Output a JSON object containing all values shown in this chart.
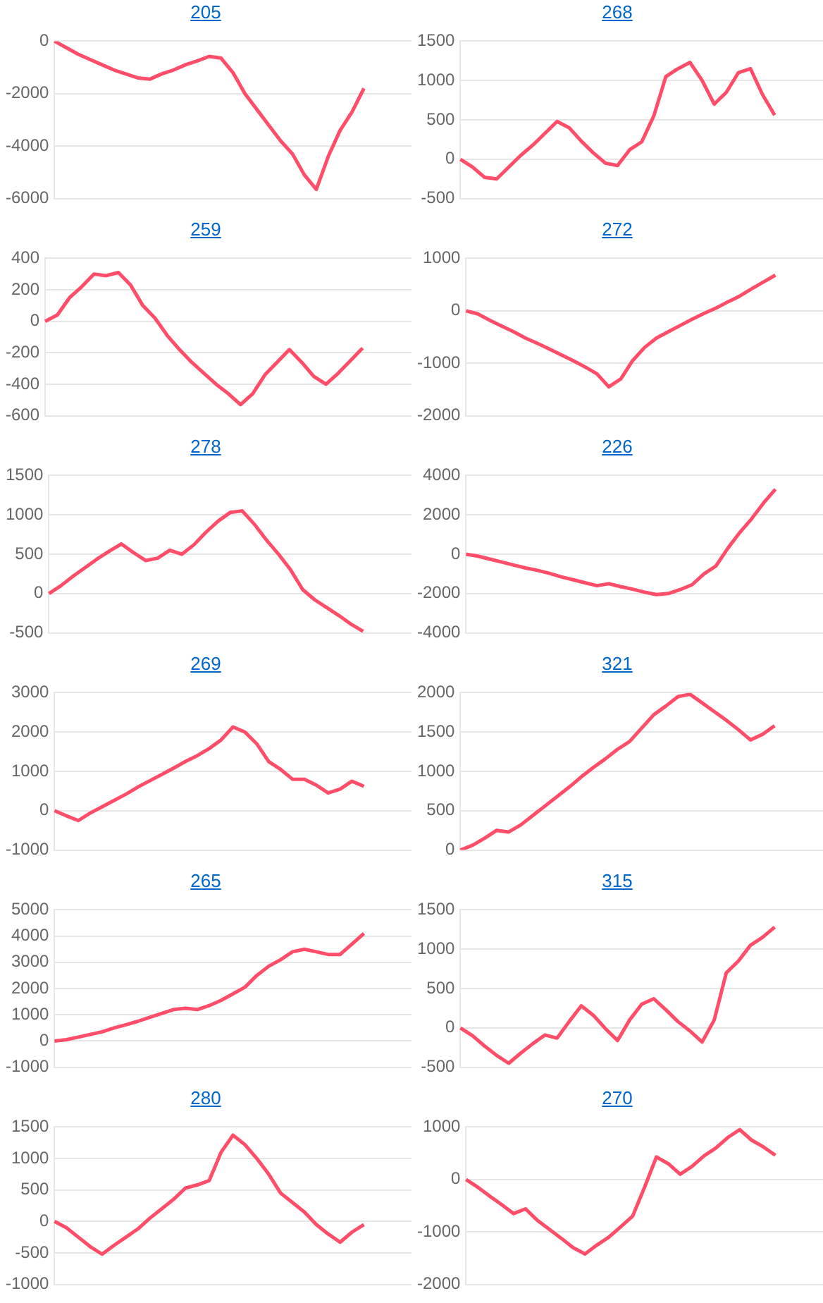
{
  "chart_data": [
    {
      "type": "line",
      "title": "205",
      "categories": [
        null,
        null,
        null,
        null,
        null,
        null,
        null,
        null,
        null,
        null,
        null,
        null,
        null,
        null,
        null,
        null,
        null,
        null,
        null,
        null,
        null,
        null,
        null,
        null,
        null,
        null,
        null,
        null,
        null,
        null,
        null
      ],
      "series": [
        {
          "color": "#ff4d6a",
          "values": [
            0,
            -250,
            -500,
            -700,
            -900,
            -1100,
            -1250,
            -1400,
            -1450,
            -1250,
            -1100,
            -900,
            -750,
            -580,
            -650,
            -1200,
            -2000,
            -2600,
            -3200,
            -3800,
            -4300,
            -5100,
            -5650,
            -4400,
            -3400,
            -2700,
            -1800,
            null,
            null,
            null,
            null
          ]
        }
      ],
      "ylim": [
        -6000,
        0
      ],
      "yticks": [
        -6000,
        -4000,
        -2000,
        0
      ],
      "grid": "y",
      "legend": false,
      "tick_labels": "y",
      "marker": "none"
    },
    {
      "type": "line",
      "title": "268",
      "categories": [
        null,
        null,
        null,
        null,
        null,
        null,
        null,
        null,
        null,
        null,
        null,
        null,
        null,
        null,
        null,
        null,
        null,
        null,
        null,
        null,
        null,
        null,
        null,
        null,
        null,
        null,
        null,
        null,
        null,
        null,
        null
      ],
      "series": [
        {
          "color": "#ff4d6a",
          "values": [
            0,
            -100,
            -230,
            -250,
            -100,
            50,
            180,
            330,
            480,
            400,
            230,
            80,
            -50,
            -80,
            120,
            220,
            550,
            1050,
            1150,
            1230,
            1000,
            700,
            850,
            1100,
            1150,
            820,
            560,
            null,
            null,
            null,
            null
          ]
        }
      ],
      "ylim": [
        -500,
        1500
      ],
      "yticks": [
        -500,
        0,
        500,
        1000,
        1500
      ],
      "grid": "y",
      "legend": false,
      "tick_labels": "y",
      "marker": "none"
    },
    {
      "type": "line",
      "title": "259",
      "categories": [
        null,
        null,
        null,
        null,
        null,
        null,
        null,
        null,
        null,
        null,
        null,
        null,
        null,
        null,
        null,
        null,
        null,
        null,
        null,
        null,
        null,
        null,
        null,
        null,
        null,
        null,
        null,
        null,
        null,
        null,
        null
      ],
      "series": [
        {
          "color": "#ff4d6a",
          "values": [
            0,
            40,
            150,
            220,
            300,
            290,
            310,
            230,
            100,
            20,
            -90,
            -180,
            -260,
            -330,
            -400,
            -460,
            -530,
            -460,
            -340,
            -260,
            -180,
            -260,
            -350,
            -400,
            -330,
            -250,
            -170,
            null,
            null,
            null,
            null
          ]
        }
      ],
      "ylim": [
        -600,
        400
      ],
      "yticks": [
        -600,
        -400,
        -200,
        0,
        200,
        400
      ],
      "grid": "y",
      "legend": false,
      "tick_labels": "y",
      "marker": "none"
    },
    {
      "type": "line",
      "title": "272",
      "categories": [
        null,
        null,
        null,
        null,
        null,
        null,
        null,
        null,
        null,
        null,
        null,
        null,
        null,
        null,
        null,
        null,
        null,
        null,
        null,
        null,
        null,
        null,
        null,
        null,
        null,
        null,
        null,
        null,
        null,
        null,
        null
      ],
      "series": [
        {
          "color": "#ff4d6a",
          "values": [
            0,
            -60,
            -180,
            -290,
            -400,
            -520,
            -620,
            -730,
            -840,
            -950,
            -1070,
            -1200,
            -1450,
            -1300,
            -950,
            -700,
            -520,
            -400,
            -280,
            -160,
            -50,
            50,
            170,
            280,
            420,
            550,
            680,
            null,
            null,
            null,
            null
          ]
        }
      ],
      "ylim": [
        -2000,
        1000
      ],
      "yticks": [
        -2000,
        -1000,
        0,
        1000
      ],
      "grid": "y",
      "legend": false,
      "tick_labels": "y",
      "marker": "none"
    },
    {
      "type": "line",
      "title": "278",
      "categories": [
        null,
        null,
        null,
        null,
        null,
        null,
        null,
        null,
        null,
        null,
        null,
        null,
        null,
        null,
        null,
        null,
        null,
        null,
        null,
        null,
        null,
        null,
        null,
        null,
        null,
        null,
        null,
        null,
        null,
        null,
        null
      ],
      "series": [
        {
          "color": "#ff4d6a",
          "values": [
            0,
            100,
            220,
            330,
            440,
            540,
            630,
            520,
            420,
            450,
            550,
            500,
            620,
            780,
            920,
            1030,
            1050,
            880,
            680,
            500,
            300,
            50,
            -80,
            -180,
            -280,
            -390,
            -480,
            null,
            null,
            null,
            null
          ]
        }
      ],
      "ylim": [
        -500,
        1500
      ],
      "yticks": [
        -500,
        0,
        500,
        1000,
        1500
      ],
      "grid": "y",
      "legend": false,
      "tick_labels": "y",
      "marker": "none"
    },
    {
      "type": "line",
      "title": "226",
      "categories": [
        null,
        null,
        null,
        null,
        null,
        null,
        null,
        null,
        null,
        null,
        null,
        null,
        null,
        null,
        null,
        null,
        null,
        null,
        null,
        null,
        null,
        null,
        null,
        null,
        null,
        null,
        null,
        null,
        null,
        null,
        null
      ],
      "series": [
        {
          "color": "#ff4d6a",
          "values": [
            0,
            -100,
            -250,
            -400,
            -550,
            -700,
            -820,
            -970,
            -1150,
            -1300,
            -1450,
            -1600,
            -1500,
            -1650,
            -1780,
            -1930,
            -2050,
            -2000,
            -1800,
            -1550,
            -1000,
            -600,
            300,
            1100,
            1800,
            2600,
            3300,
            null,
            null,
            null,
            null
          ]
        }
      ],
      "ylim": [
        -4000,
        4000
      ],
      "yticks": [
        -4000,
        -2000,
        0,
        2000,
        4000
      ],
      "grid": "y",
      "legend": false,
      "tick_labels": "y",
      "marker": "none"
    },
    {
      "type": "line",
      "title": "269",
      "categories": [
        null,
        null,
        null,
        null,
        null,
        null,
        null,
        null,
        null,
        null,
        null,
        null,
        null,
        null,
        null,
        null,
        null,
        null,
        null,
        null,
        null,
        null,
        null,
        null,
        null,
        null,
        null,
        null,
        null,
        null,
        null
      ],
      "series": [
        {
          "color": "#ff4d6a",
          "values": [
            0,
            -130,
            -250,
            -60,
            100,
            260,
            420,
            600,
            760,
            920,
            1080,
            1250,
            1400,
            1580,
            1800,
            2130,
            2000,
            1700,
            1250,
            1050,
            800,
            800,
            650,
            450,
            550,
            750,
            620,
            null,
            null,
            null,
            null
          ]
        }
      ],
      "ylim": [
        -1000,
        3000
      ],
      "yticks": [
        -1000,
        0,
        1000,
        2000,
        3000
      ],
      "grid": "y",
      "legend": false,
      "tick_labels": "y",
      "marker": "none"
    },
    {
      "type": "line",
      "title": "321",
      "categories": [
        null,
        null,
        null,
        null,
        null,
        null,
        null,
        null,
        null,
        null,
        null,
        null,
        null,
        null,
        null,
        null,
        null,
        null,
        null,
        null,
        null,
        null,
        null,
        null,
        null,
        null,
        null,
        null,
        null,
        null,
        null
      ],
      "series": [
        {
          "color": "#ff4d6a",
          "values": [
            0,
            60,
            150,
            250,
            230,
            320,
            440,
            560,
            680,
            800,
            930,
            1050,
            1160,
            1280,
            1380,
            1550,
            1720,
            1830,
            1950,
            1980,
            1870,
            1760,
            1650,
            1530,
            1400,
            1470,
            1580,
            null,
            null,
            null,
            null
          ]
        }
      ],
      "ylim": [
        0,
        2000
      ],
      "yticks": [
        0,
        500,
        1000,
        1500,
        2000
      ],
      "grid": "y",
      "legend": false,
      "tick_labels": "y",
      "marker": "none"
    },
    {
      "type": "line",
      "title": "265",
      "categories": [
        null,
        null,
        null,
        null,
        null,
        null,
        null,
        null,
        null,
        null,
        null,
        null,
        null,
        null,
        null,
        null,
        null,
        null,
        null,
        null,
        null,
        null,
        null,
        null,
        null,
        null,
        null,
        null,
        null,
        null,
        null
      ],
      "series": [
        {
          "color": "#ff4d6a",
          "values": [
            0,
            50,
            150,
            250,
            350,
            500,
            620,
            750,
            900,
            1050,
            1200,
            1250,
            1200,
            1350,
            1550,
            1800,
            2050,
            2500,
            2850,
            3100,
            3400,
            3500,
            3400,
            3300,
            3300,
            3700,
            4100,
            null,
            null,
            null,
            null
          ]
        }
      ],
      "ylim": [
        -1000,
        5000
      ],
      "yticks": [
        -1000,
        0,
        1000,
        2000,
        3000,
        4000,
        5000
      ],
      "grid": "y",
      "legend": false,
      "tick_labels": "y",
      "marker": "none"
    },
    {
      "type": "line",
      "title": "315",
      "categories": [
        null,
        null,
        null,
        null,
        null,
        null,
        null,
        null,
        null,
        null,
        null,
        null,
        null,
        null,
        null,
        null,
        null,
        null,
        null,
        null,
        null,
        null,
        null,
        null,
        null,
        null,
        null,
        null,
        null,
        null,
        null
      ],
      "series": [
        {
          "color": "#ff4d6a",
          "values": [
            0,
            -100,
            -230,
            -350,
            -450,
            -320,
            -200,
            -90,
            -130,
            80,
            280,
            160,
            -10,
            -160,
            100,
            300,
            370,
            230,
            80,
            -40,
            -180,
            100,
            700,
            850,
            1050,
            1150,
            1280,
            null,
            null,
            null,
            null
          ]
        }
      ],
      "ylim": [
        -500,
        1500
      ],
      "yticks": [
        -500,
        0,
        500,
        1000,
        1500
      ],
      "grid": "y",
      "legend": false,
      "tick_labels": "y",
      "marker": "none"
    },
    {
      "type": "line",
      "title": "280",
      "categories": [
        null,
        null,
        null,
        null,
        null,
        null,
        null,
        null,
        null,
        null,
        null,
        null,
        null,
        null,
        null,
        null,
        null,
        null,
        null,
        null,
        null,
        null,
        null,
        null,
        null,
        null,
        null,
        null,
        null,
        null,
        null
      ],
      "series": [
        {
          "color": "#ff4d6a",
          "values": [
            0,
            -100,
            -250,
            -400,
            -520,
            -380,
            -250,
            -120,
            50,
            200,
            350,
            530,
            580,
            650,
            1100,
            1370,
            1220,
            1000,
            750,
            450,
            300,
            150,
            -50,
            -200,
            -330,
            -170,
            -50,
            null,
            null,
            null,
            null
          ]
        }
      ],
      "ylim": [
        -1000,
        1500
      ],
      "yticks": [
        -1000,
        -500,
        0,
        500,
        1000,
        1500
      ],
      "grid": "y",
      "legend": false,
      "tick_labels": "y",
      "marker": "none"
    },
    {
      "type": "line",
      "title": "270",
      "categories": [
        null,
        null,
        null,
        null,
        null,
        null,
        null,
        null,
        null,
        null,
        null,
        null,
        null,
        null,
        null,
        null,
        null,
        null,
        null,
        null,
        null,
        null,
        null,
        null,
        null,
        null,
        null,
        null,
        null,
        null,
        null
      ],
      "series": [
        {
          "color": "#ff4d6a",
          "values": [
            0,
            -150,
            -320,
            -480,
            -650,
            -560,
            -780,
            -950,
            -1120,
            -1300,
            -1420,
            -1250,
            -1100,
            -900,
            -700,
            -150,
            430,
            300,
            100,
            250,
            450,
            600,
            800,
            950,
            750,
            620,
            460,
            null,
            null,
            null,
            null
          ]
        }
      ],
      "ylim": [
        -2000,
        1000
      ],
      "yticks": [
        -2000,
        -1000,
        0,
        1000
      ],
      "grid": "y",
      "legend": false,
      "tick_labels": "y",
      "marker": "none"
    }
  ]
}
